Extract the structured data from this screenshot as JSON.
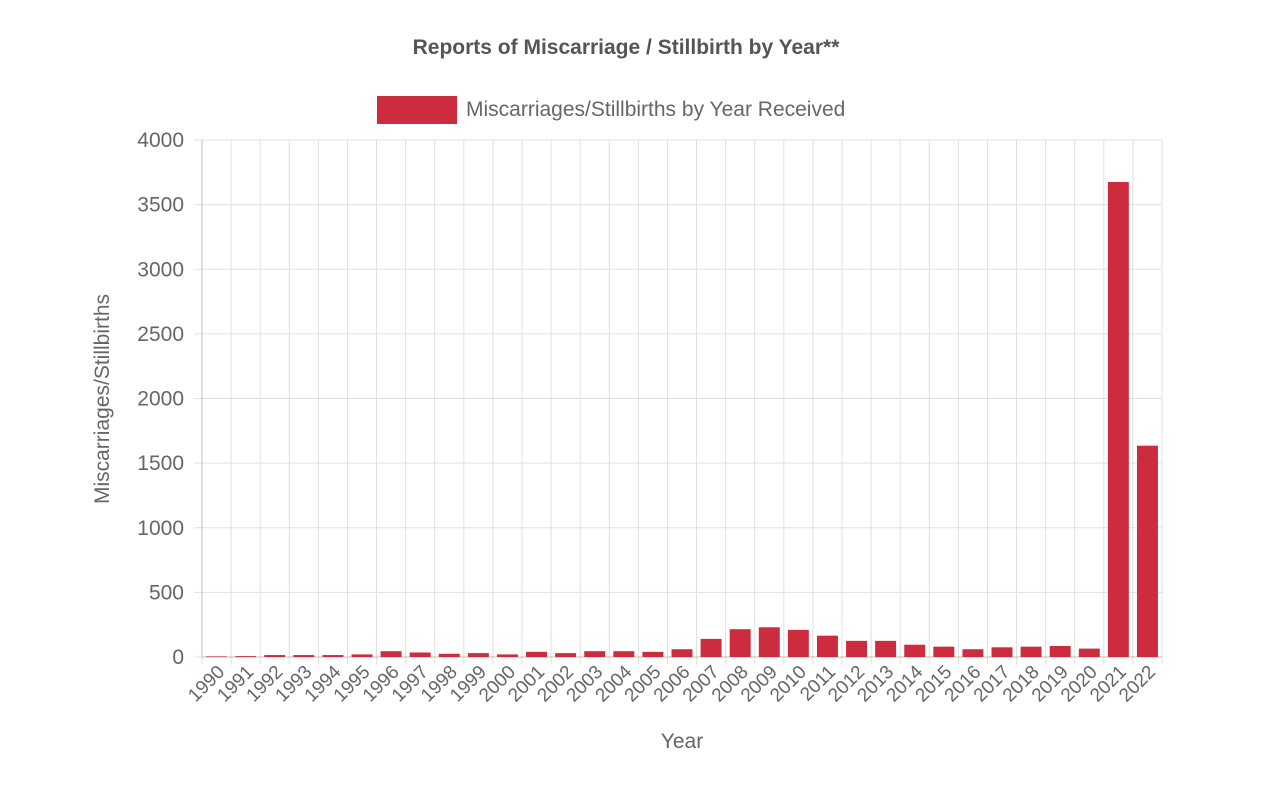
{
  "chart_data": {
    "type": "bar",
    "title": "Reports of Miscarriage / Stillbirth by Year**",
    "xlabel": "Year",
    "ylabel": "Miscarriages/Stillbirths",
    "ylim": [
      0,
      4000
    ],
    "yticks": [
      "0",
      "500",
      "1000",
      "1500",
      "2000",
      "2500",
      "3000",
      "3500",
      "4000"
    ],
    "grid": true,
    "legend_position": "top",
    "bar_color": "#cc2c3d",
    "categories": [
      "1990",
      "1991",
      "1992",
      "1993",
      "1994",
      "1995",
      "1996",
      "1997",
      "1998",
      "1999",
      "2000",
      "2001",
      "2002",
      "2003",
      "2004",
      "2005",
      "2006",
      "2007",
      "2008",
      "2009",
      "2010",
      "2011",
      "2012",
      "2013",
      "2014",
      "2015",
      "2016",
      "2017",
      "2018",
      "2019",
      "2020",
      "2021",
      "2022"
    ],
    "series": [
      {
        "name": "Miscarriages/Stillbirths by Year Received",
        "values": [
          5,
          7,
          15,
          15,
          15,
          20,
          45,
          35,
          25,
          30,
          20,
          40,
          30,
          45,
          45,
          40,
          60,
          140,
          215,
          230,
          210,
          165,
          125,
          125,
          95,
          80,
          60,
          75,
          80,
          85,
          65,
          3675,
          1635
        ]
      }
    ]
  }
}
